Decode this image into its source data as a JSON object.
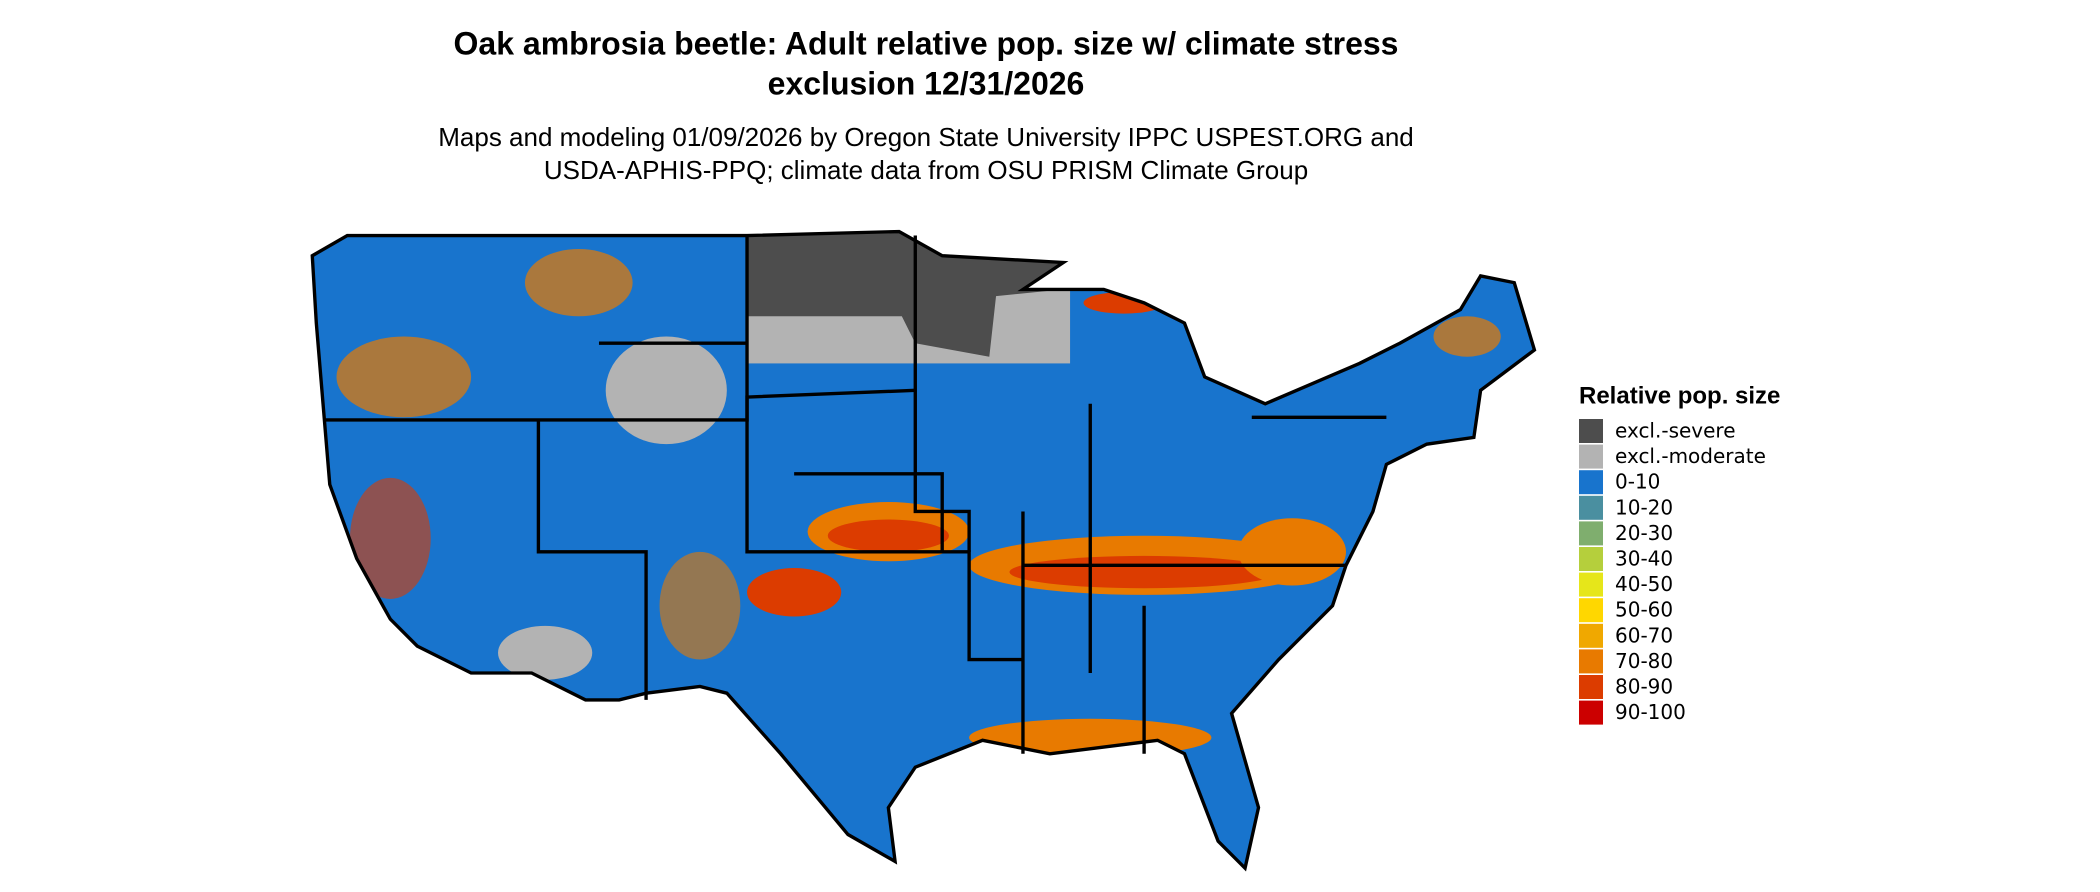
{
  "title": [
    "Oak ambrosia beetle: Adult relative pop. size w/ climate stress",
    "exclusion 12/31/2026"
  ],
  "subtitle": [
    "Maps and modeling 01/09/2026 by Oregon State University IPPC USPEST.ORG and",
    "USDA-APHIS-PPQ; climate data from OSU PRISM Climate Group"
  ],
  "legend": {
    "title": "Relative pop. size",
    "items": [
      {
        "label": "excl.-severe",
        "color": "#4d4d4d"
      },
      {
        "label": "excl.-moderate",
        "color": "#b3b3b3"
      },
      {
        "label": "0-10",
        "color": "#1874cd"
      },
      {
        "label": "10-20",
        "color": "#4a8fa0"
      },
      {
        "label": "20-30",
        "color": "#7fae6e"
      },
      {
        "label": "30-40",
        "color": "#b5cf3c"
      },
      {
        "label": "40-50",
        "color": "#e6e61a"
      },
      {
        "label": "50-60",
        "color": "#ffd700"
      },
      {
        "label": "60-70",
        "color": "#f0a800"
      },
      {
        "label": "70-80",
        "color": "#e87a00"
      },
      {
        "label": "80-90",
        "color": "#dc3c00"
      },
      {
        "label": "90-100",
        "color": "#cc0000"
      }
    ]
  }
}
